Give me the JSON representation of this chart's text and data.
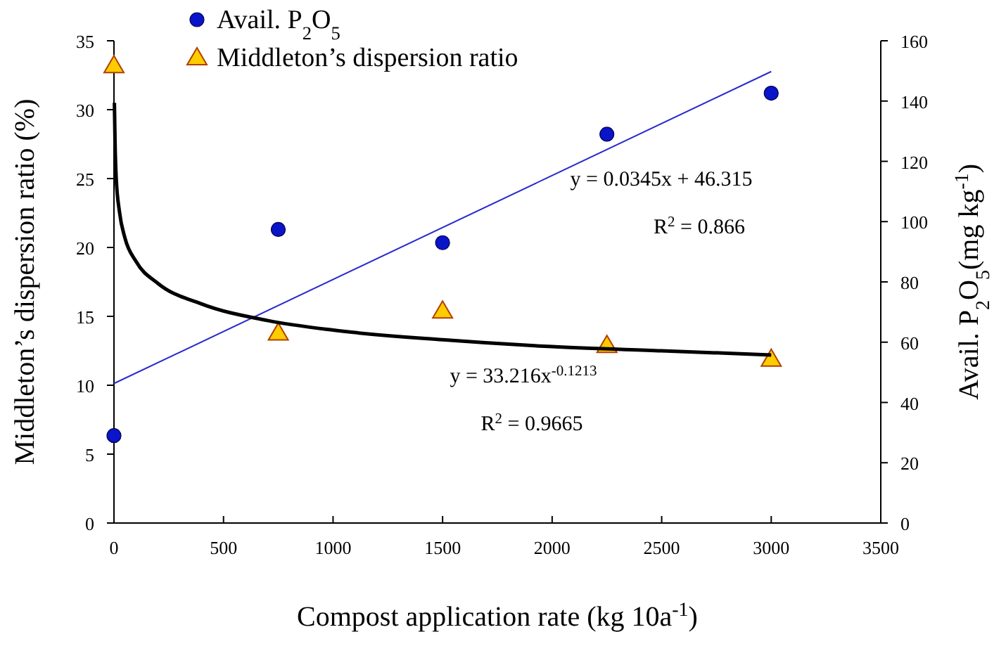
{
  "chart_data": {
    "type": "scatter",
    "xlabel": "Compost application rate (kg 10a$^{-1}$)",
    "ylabel": "Middleton’s dispersion ratio (%)",
    "y2label": "Avail. P$_{2}$O$_{5}$(mg kg$^{-1}$)",
    "xlim": [
      0,
      3500
    ],
    "xticks": [
      0,
      500,
      1000,
      1500,
      2000,
      2500,
      3000,
      3500
    ],
    "ylim": [
      0,
      35
    ],
    "yticks": [
      0,
      5,
      10,
      15,
      20,
      25,
      30,
      35
    ],
    "y2lim": [
      0,
      160
    ],
    "y2ticks": [
      0,
      20,
      40,
      60,
      80,
      100,
      120,
      140,
      160
    ],
    "grid": false,
    "legend": "top left",
    "series": [
      {
        "name": "Avail. P$_{2}$O$_{5}$",
        "axis": "y2",
        "marker": "circle",
        "color": "#0a14c8",
        "x": [
          0,
          750,
          1500,
          2250,
          3000
        ],
        "values": [
          29,
          97.4,
          93,
          129,
          142.6
        ]
      },
      {
        "name": "Middleton’s dispersion ratio",
        "axis": "y",
        "marker": "triangle",
        "color": "#ffcc00",
        "x": [
          0,
          750,
          1500,
          2250,
          3000
        ],
        "values": [
          33.2,
          13.8,
          15.4,
          12.9,
          11.9
        ]
      },
      {
        "type": "line",
        "axis": "y2",
        "color": "#2a2ad0",
        "x": [
          0,
          3000
        ],
        "values": [
          46.3,
          149.8
        ]
      },
      {
        "type": "line",
        "axis": "y",
        "color": "#000000",
        "x": [
          2,
          5,
          10,
          25,
          50,
          100,
          200,
          400,
          700,
          1000,
          1500,
          2000,
          2500,
          3000
        ],
        "values": [
          30.5,
          27.6,
          25.1,
          22.6,
          20.7,
          19.0,
          17.4,
          15.9,
          14.7,
          14.0,
          13.3,
          12.8,
          12.5,
          12.2
        ]
      }
    ],
    "annotations": [
      "y = 0.0345x + 46.315",
      "R$^{2}$ = 0.866",
      "y = 33.216x$^{-0.1213}$",
      "R$^{2}$ = 0.9665"
    ]
  }
}
